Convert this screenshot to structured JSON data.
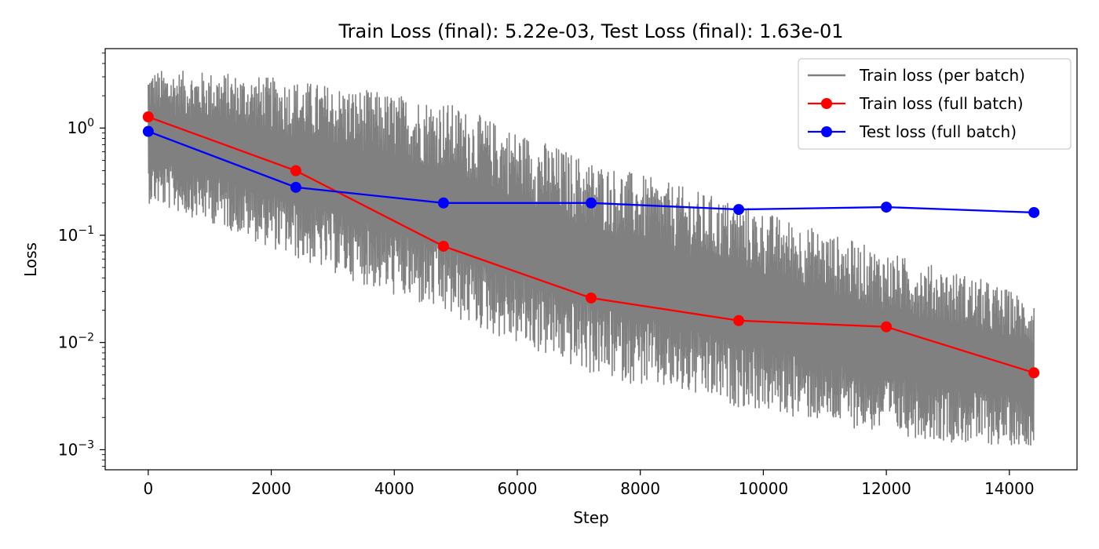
{
  "chart_data": {
    "type": "line",
    "title": "Train Loss (final): 5.22e-03, Test Loss (final): 1.63e-01",
    "xlabel": "Step",
    "ylabel": "Loss",
    "xlim": [
      -700,
      15100
    ],
    "ylim": [
      0.00065,
      5.5
    ],
    "yscale": "log",
    "x_ticks": [
      0,
      2000,
      4000,
      6000,
      8000,
      10000,
      12000,
      14000
    ],
    "x_tick_labels": [
      "0",
      "2000",
      "4000",
      "6000",
      "8000",
      "10000",
      "12000",
      "14000"
    ],
    "y_ticks": [
      0.001,
      0.01,
      0.1,
      1
    ],
    "y_tick_labels": [
      {
        "base": "10",
        "exp": "−3"
      },
      {
        "base": "10",
        "exp": "−2"
      },
      {
        "base": "10",
        "exp": "−1"
      },
      {
        "base": "10",
        "exp": "0"
      }
    ],
    "grid": false,
    "legend_position": "top-right",
    "series": [
      {
        "name": "Train loss (per batch)",
        "color": "#808080",
        "style": "line-noisy",
        "x_range": [
          0,
          14400
        ],
        "upper_envelope": {
          "x": [
            0,
            1200,
            2400,
            4800,
            7200,
            9600,
            12000,
            13500,
            14400
          ],
          "y": [
            3.5,
            3.3,
            2.8,
            1.8,
            0.5,
            0.2,
            0.07,
            0.04,
            0.025
          ]
        },
        "lower_envelope": {
          "x": [
            0,
            1200,
            2400,
            4800,
            7200,
            9600,
            12000,
            13500,
            14400
          ],
          "y": [
            0.2,
            0.12,
            0.06,
            0.018,
            0.005,
            0.0025,
            0.0014,
            0.0011,
            0.0011
          ]
        }
      },
      {
        "name": "Train loss (full batch)",
        "color": "#ff0000",
        "style": "line-marker",
        "x": [
          0,
          2400,
          4800,
          7200,
          9600,
          12000,
          14400
        ],
        "y": [
          1.27,
          0.4,
          0.079,
          0.026,
          0.016,
          0.014,
          0.00522
        ]
      },
      {
        "name": "Test loss (full batch)",
        "color": "#0000ff",
        "style": "line-marker",
        "x": [
          0,
          2400,
          4800,
          7200,
          9600,
          12000,
          14400
        ],
        "y": [
          0.93,
          0.28,
          0.2,
          0.2,
          0.174,
          0.183,
          0.163
        ]
      }
    ]
  }
}
